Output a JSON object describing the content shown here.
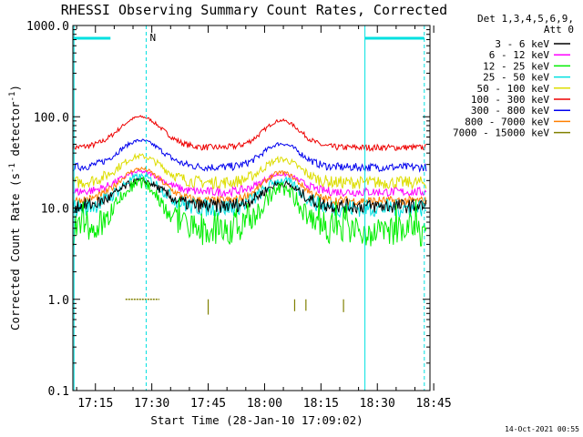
{
  "chart_data": {
    "type": "line",
    "title": "RHESSI Observing Summary Count Rates, Corrected",
    "xlabel": "Start Time (28-Jan-10 17:09:02)",
    "ylabel": "Corrected Count Rate (s⁻¹ detector⁻¹)",
    "ylabel_base": "Corrected Count Rate (s",
    "ylabel_sup1": "-1",
    "ylabel_mid": " detector",
    "ylabel_sup2": "-1",
    "ylabel_end": ")",
    "yscale": "log",
    "ylim": [
      0.1,
      1000.0
    ],
    "y_tick_labels": [
      "0.1",
      "1.0",
      "10.0",
      "100.0",
      "1000.0"
    ],
    "y_tick_values": [
      0.1,
      1,
      10,
      100,
      1000
    ],
    "xlim_minutes_since_start": [
      0,
      95
    ],
    "x_tick_labels": [
      "17:15",
      "17:30",
      "17:45",
      "18:00",
      "18:15",
      "18:30",
      "18:45"
    ],
    "legend_header_line1": "Det 1,3,4,5,6,9,",
    "legend_header_line2": "Att 0",
    "legend_placement": "right",
    "night_marker_label": "N",
    "timestamp": "14-Oct-2021 00:55",
    "series": [
      {
        "name": "3 - 6 keV",
        "color": "#000000",
        "baseline": 10.5,
        "peak": 20
      },
      {
        "name": "6 - 12 keV",
        "color": "#ff00ff",
        "baseline": 15,
        "peak": 25
      },
      {
        "name": "12 - 25 keV",
        "color": "#00ee00",
        "baseline": 5.5,
        "peak": 19
      },
      {
        "name": "25 - 50 keV",
        "color": "#00e0e0",
        "baseline": 10,
        "peak": 22
      },
      {
        "name": "50 - 100 keV",
        "color": "#dddd00",
        "baseline": 19,
        "peak": 37
      },
      {
        "name": "100 - 300 keV",
        "color": "#ee0000",
        "baseline": 46,
        "peak": 100
      },
      {
        "name": "300 - 800 keV",
        "color": "#0000ee",
        "baseline": 28,
        "peak": 55
      },
      {
        "name": "800 - 7000 keV",
        "color": "#ff7f00",
        "baseline": 12,
        "peak": 27
      },
      {
        "name": "7000 - 15000 keV",
        "color": "#808000",
        "baseline": 1.0,
        "peak": 1.0
      }
    ],
    "series_colors": {
      "cyan": "#00e0e0"
    }
  }
}
